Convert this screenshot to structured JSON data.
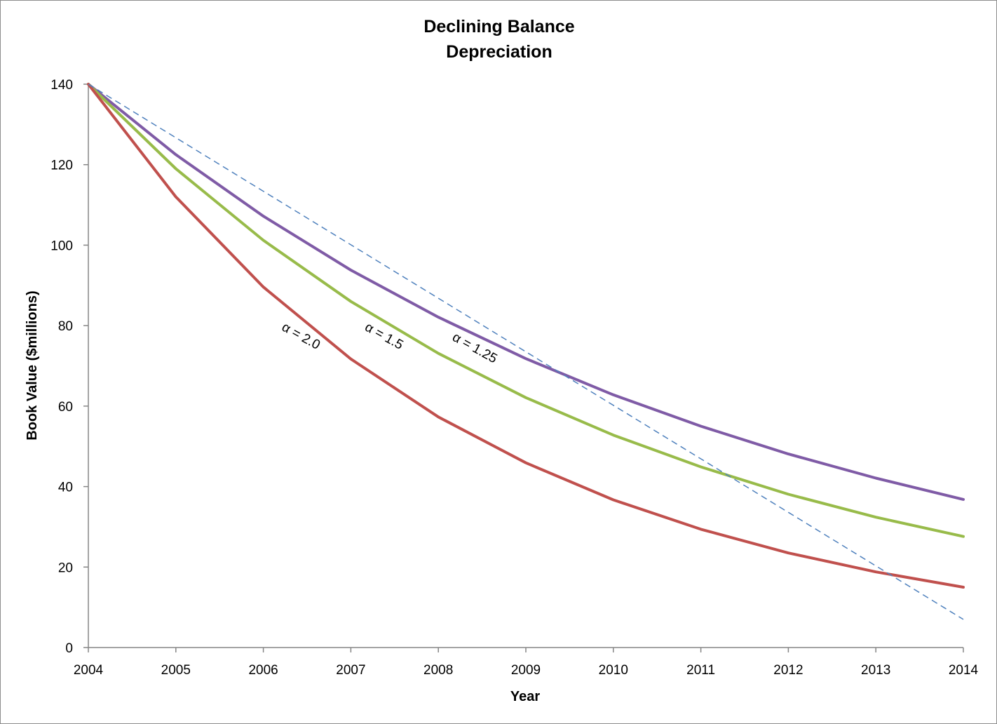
{
  "chart_data": {
    "type": "line",
    "title_lines": [
      "Declining Balance",
      "Depreciation"
    ],
    "xlabel": "Year",
    "ylabel": "Book Value ($millions)",
    "x": [
      2004,
      2005,
      2006,
      2007,
      2008,
      2009,
      2010,
      2011,
      2012,
      2013,
      2014
    ],
    "xlim": [
      2004,
      2014
    ],
    "ylim": [
      0,
      140
    ],
    "yticks": [
      0,
      20,
      40,
      60,
      80,
      100,
      120,
      140
    ],
    "xticks": [
      2004,
      2005,
      2006,
      2007,
      2008,
      2009,
      2010,
      2011,
      2012,
      2013,
      2014
    ],
    "grid": false,
    "legend": "none",
    "series": [
      {
        "values": [
          140,
          122.5,
          107.2,
          93.8,
          82.1,
          71.8,
          62.8,
          55.0,
          48.1,
          42.1,
          36.8
        ],
        "color": "#7f5ba6",
        "style": "solid"
      },
      {
        "values": [
          140,
          119.0,
          101.2,
          86.0,
          73.1,
          62.1,
          52.8,
          44.9,
          38.1,
          32.4,
          27.6
        ],
        "color": "#98bb4a",
        "style": "solid"
      },
      {
        "values": [
          140,
          112.0,
          89.6,
          71.7,
          57.3,
          45.9,
          36.7,
          29.4,
          23.5,
          18.8,
          15.0
        ],
        "color": "#c0504d",
        "style": "solid"
      },
      {
        "values": [
          140,
          126.7,
          113.4,
          100.1,
          86.8,
          73.5,
          60.2,
          46.9,
          33.6,
          20.3,
          7.0
        ],
        "color": "#4f81bd",
        "style": "dashed"
      }
    ],
    "annotations": [
      {
        "text": "α = 2.0",
        "x": 2006.2,
        "y": 79
      },
      {
        "text": "α = 1.5",
        "x": 2007.15,
        "y": 79
      },
      {
        "text": "α = 1.25",
        "x": 2008.15,
        "y": 76.5
      }
    ]
  }
}
